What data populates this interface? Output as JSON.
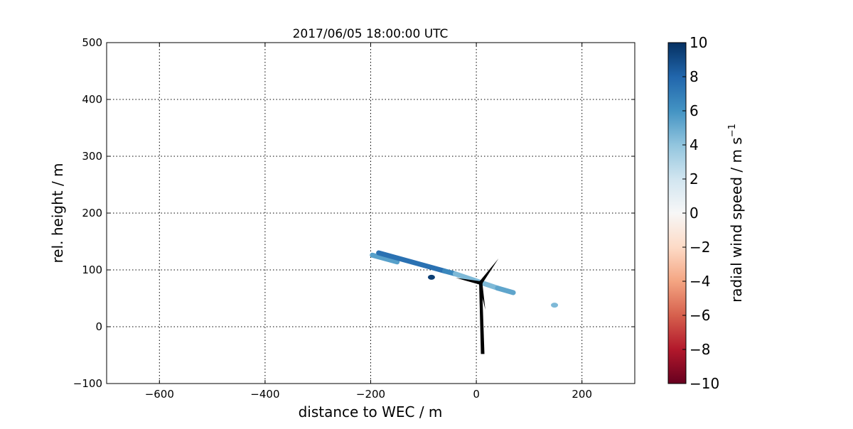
{
  "chart_data": {
    "type": "scatter",
    "title": "2017/06/05 18:00:00 UTC",
    "xlabel": "distance to WEC / m",
    "ylabel": "rel. height / m",
    "xlim": [
      -700,
      300
    ],
    "ylim": [
      -100,
      500
    ],
    "xticks": [
      -600,
      -400,
      -200,
      0,
      200
    ],
    "yticks": [
      -100,
      0,
      100,
      200,
      300,
      400,
      500
    ],
    "grid": true,
    "colormap": "RdBu",
    "colorbar": {
      "label": "radial wind speed / m s",
      "label_superscript": "−1",
      "range": [
        -10,
        10
      ],
      "ticks": [
        -10,
        -8,
        -6,
        -4,
        -2,
        0,
        2,
        4,
        6,
        8,
        10
      ]
    },
    "scan_segments": [
      {
        "x": [
          -197,
          -150
        ],
        "y": [
          126,
          114
        ],
        "value": 5.5
      },
      {
        "x": [
          -185,
          -60
        ],
        "y": [
          130,
          98
        ],
        "value": 7.5
      },
      {
        "x": [
          -60,
          -40
        ],
        "y": [
          98,
          93
        ],
        "value": 6.5
      },
      {
        "x": [
          -40,
          40
        ],
        "y": [
          93,
          68
        ],
        "value": 4.5
      },
      {
        "x": [
          40,
          70
        ],
        "y": [
          68,
          60
        ],
        "value": 5.3
      }
    ],
    "points": [
      {
        "x": -85,
        "y": 87,
        "value": 9.5
      },
      {
        "x": 148,
        "y": 38,
        "value": 4.5
      }
    ],
    "turbine": {
      "tower_base": [
        12,
        -48
      ],
      "hub": [
        8,
        77
      ],
      "blade_tips": [
        [
          42,
          120
        ],
        [
          -39,
          86
        ],
        [
          17,
          30
        ]
      ],
      "color": "#000000"
    }
  }
}
